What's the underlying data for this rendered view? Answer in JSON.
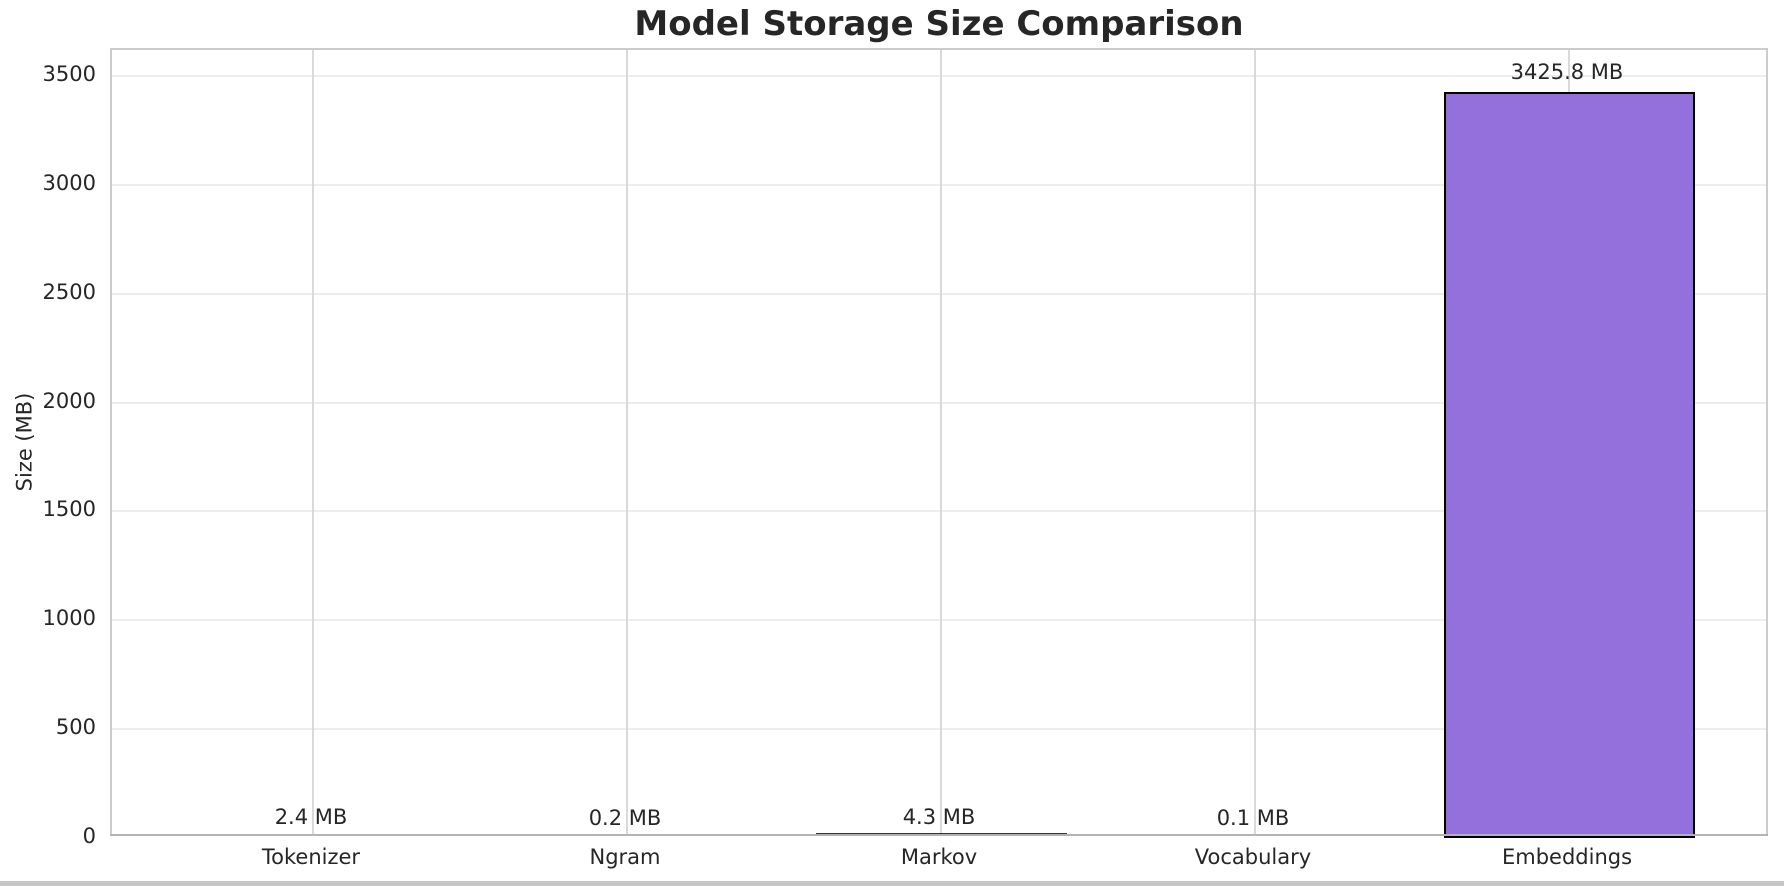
{
  "chart_data": {
    "type": "bar",
    "title": "Model Storage Size Comparison",
    "categories": [
      "Tokenizer",
      "Ngram",
      "Markov",
      "Vocabulary",
      "Embeddings"
    ],
    "values": [
      2.4,
      0.2,
      4.3,
      0.1,
      3425.8
    ],
    "value_labels": [
      "2.4 MB",
      "0.2 MB",
      "4.3 MB",
      "0.1 MB",
      "3425.8 MB"
    ],
    "xlabel": "",
    "ylabel": "Size (MB)",
    "yticks": [
      0,
      500,
      1000,
      1500,
      2000,
      2500,
      3000,
      3500
    ],
    "ylim": [
      0,
      3620
    ],
    "grid": true,
    "legend": false,
    "bar_color": "#9370DB",
    "bar_edge_color": "#000000",
    "text_color": "#262626",
    "h_grid_color": "#ededed",
    "v_grid_color": "#d9d9d9"
  }
}
